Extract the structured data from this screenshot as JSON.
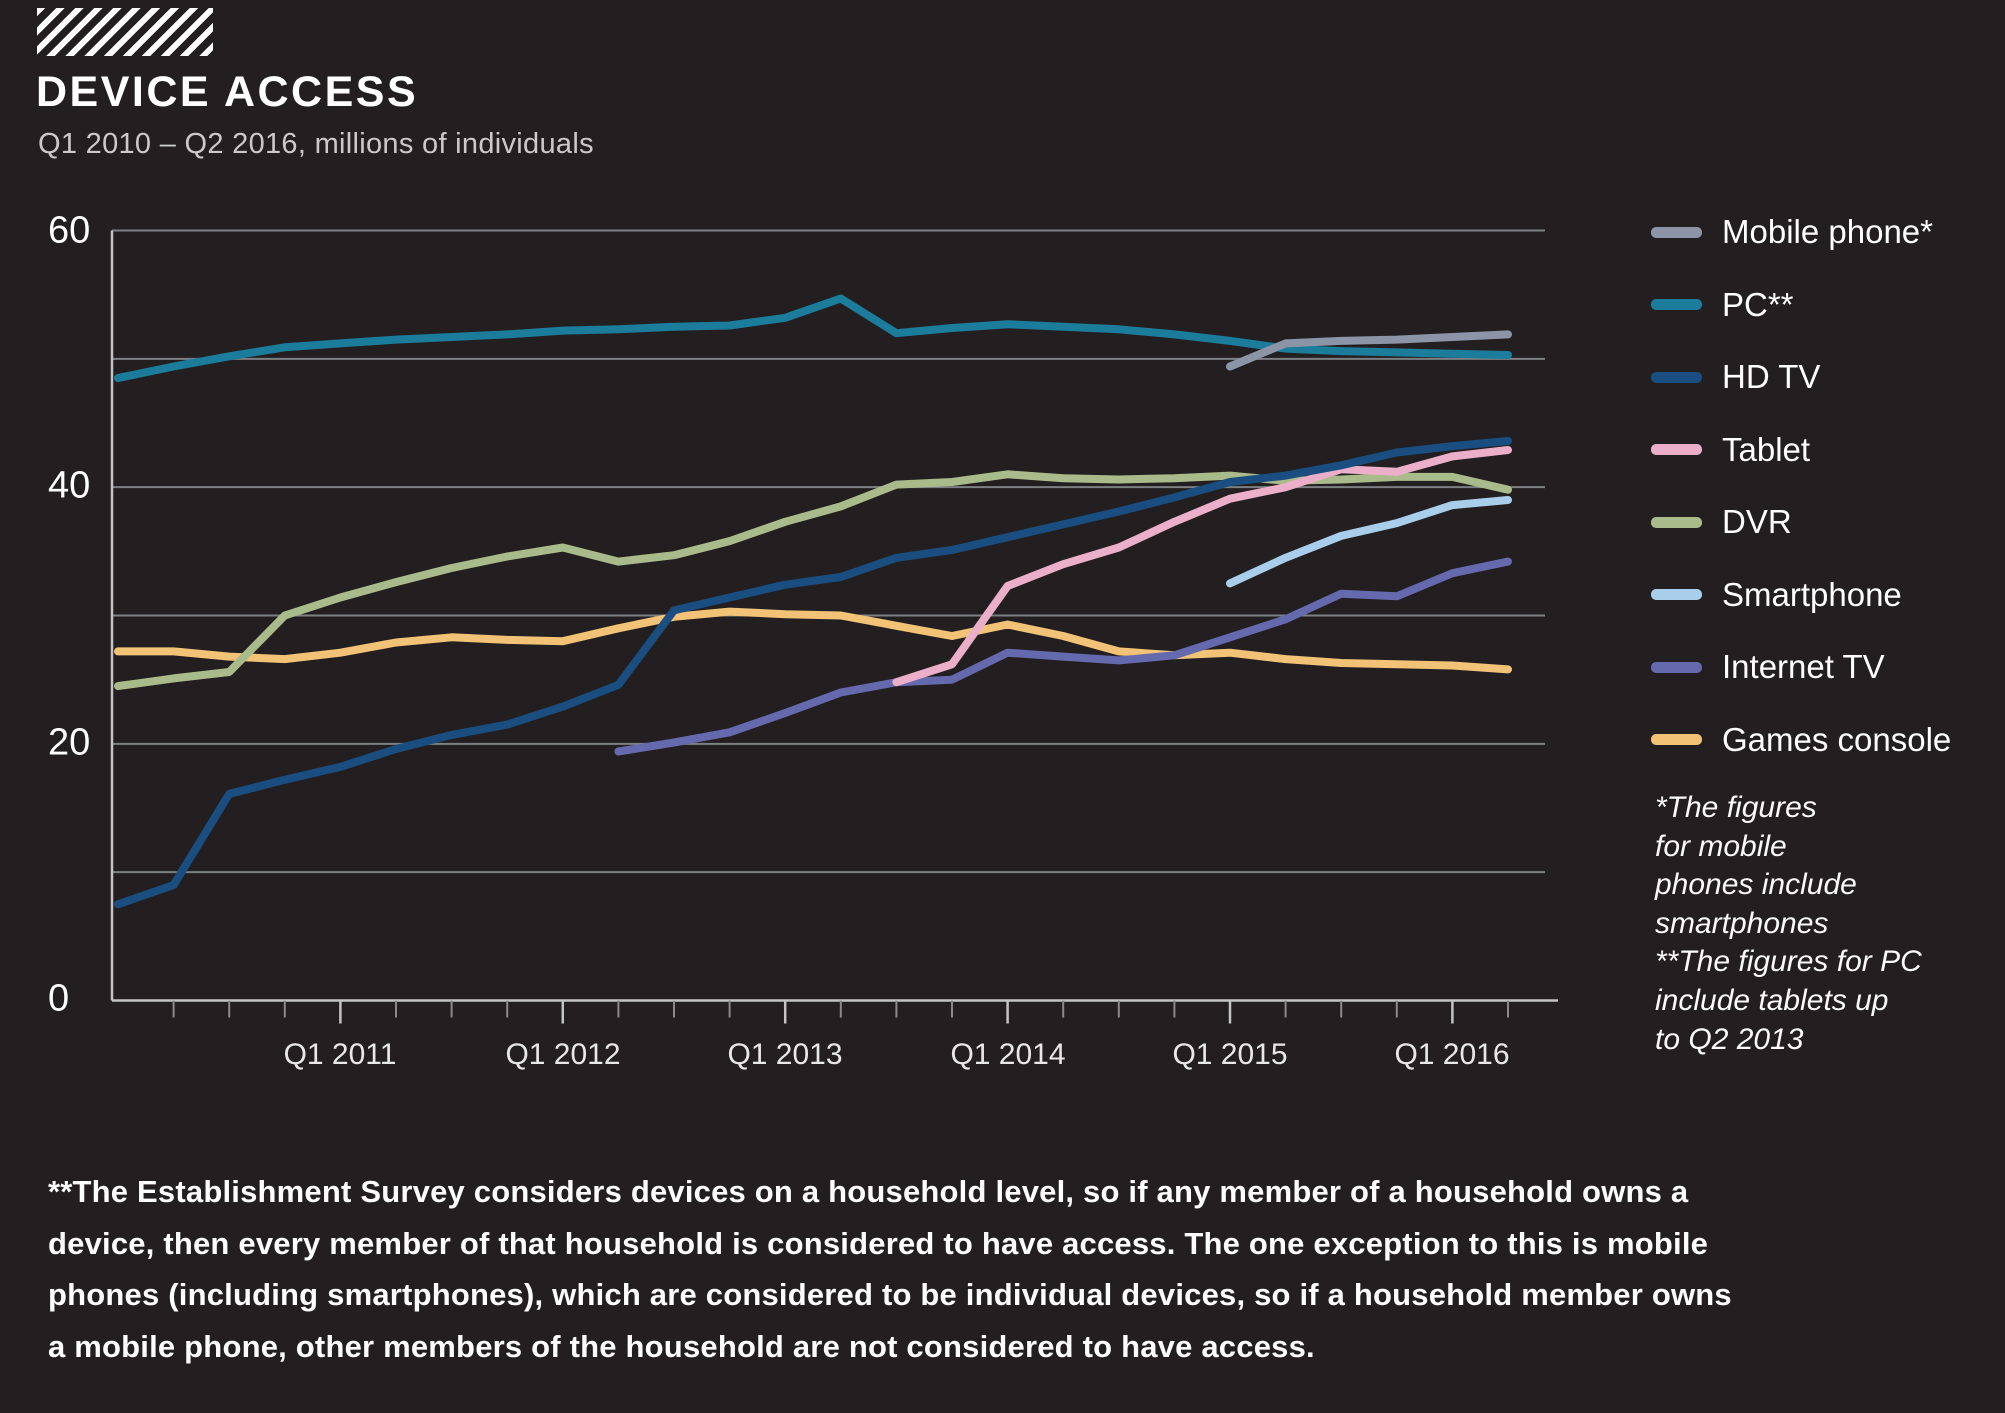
{
  "header": {
    "title": "DEVICE ACCESS",
    "subtitle": "Q1 2010 – Q2 2016, millions of individuals"
  },
  "colors": {
    "background": "#231F20",
    "grid": "#7D8083",
    "axis": "#C4C4C4",
    "tick_minor": "#8A8A8A",
    "tick_major": "#C4C4C4"
  },
  "footnote_lines": [
    "*The figures",
    "for mobile",
    "phones include",
    "smartphones",
    "**The figures for PC",
    "include tablets up",
    "to Q2 2013"
  ],
  "bottom_note_lines": [
    "**The Establishment Survey considers devices on a household level, so if any member of a household owns a",
    "device, then every member of that household is considered to have access. The one exception to this is mobile",
    "phones (including smartphones), which are considered to be individual devices, so if a household member owns",
    "a mobile phone, other members of the household are not considered to have access."
  ],
  "chart_data": {
    "type": "line",
    "title": "DEVICE ACCESS",
    "subtitle": "Q1 2010 – Q2 2016, millions of individuals",
    "ylabel": "millions of individuals",
    "ylim": [
      0,
      60
    ],
    "grid_interval": 10,
    "legend_position": "right",
    "y_tick_labels": [
      "60",
      "40",
      "20",
      "0"
    ],
    "x_axis_tick_labels": [
      "Q1 2011",
      "Q1 2012",
      "Q1 2013",
      "Q1 2014",
      "Q1 2015",
      "Q1 2016"
    ],
    "x": [
      "Q1 2010",
      "Q2 2010",
      "Q3 2010",
      "Q4 2010",
      "Q1 2011",
      "Q2 2011",
      "Q3 2011",
      "Q4 2011",
      "Q1 2012",
      "Q2 2012",
      "Q3 2012",
      "Q4 2012",
      "Q1 2013",
      "Q2 2013",
      "Q3 2013",
      "Q4 2013",
      "Q1 2014",
      "Q2 2014",
      "Q3 2014",
      "Q4 2014",
      "Q1 2015",
      "Q2 2015",
      "Q3 2015",
      "Q4 2015",
      "Q1 2016",
      "Q2 2016"
    ],
    "series": [
      {
        "name": "Mobile phone*",
        "color": "#8B95A7",
        "values": [
          null,
          null,
          null,
          null,
          null,
          null,
          null,
          null,
          null,
          null,
          null,
          null,
          null,
          null,
          null,
          null,
          null,
          null,
          null,
          null,
          49.4,
          51.2,
          51.4,
          51.5,
          51.7,
          51.9
        ]
      },
      {
        "name": "PC**",
        "color": "#1B7C9B",
        "values": [
          48.5,
          49.4,
          50.2,
          50.9,
          51.2,
          51.5,
          51.7,
          51.9,
          52.2,
          52.3,
          52.5,
          52.6,
          53.2,
          54.7,
          52.0,
          52.4,
          52.7,
          52.5,
          52.3,
          51.9,
          51.4,
          50.8,
          50.6,
          50.5,
          50.4,
          50.3
        ]
      },
      {
        "name": "HD TV",
        "color": "#1A4E80",
        "values": [
          7.5,
          9.0,
          16.1,
          17.2,
          18.2,
          19.6,
          20.7,
          21.5,
          22.9,
          24.6,
          30.4,
          31.4,
          32.4,
          33.0,
          34.5,
          35.1,
          36.1,
          37.1,
          38.1,
          39.2,
          40.4,
          40.9,
          41.7,
          42.7,
          43.2,
          43.6
        ]
      },
      {
        "name": "Tablet",
        "color": "#ECAFC9",
        "values": [
          null,
          null,
          null,
          null,
          null,
          null,
          null,
          null,
          null,
          null,
          null,
          null,
          null,
          null,
          24.8,
          26.2,
          32.3,
          34.0,
          35.3,
          37.3,
          39.1,
          40.0,
          41.4,
          41.2,
          42.4,
          42.9
        ]
      },
      {
        "name": "DVR",
        "color": "#A9BB8A",
        "values": [
          24.5,
          25.1,
          25.6,
          30.0,
          31.4,
          32.6,
          33.7,
          34.6,
          35.3,
          34.2,
          34.7,
          35.8,
          37.3,
          38.5,
          40.2,
          40.4,
          41.0,
          40.7,
          40.6,
          40.7,
          40.9,
          40.5,
          40.6,
          40.8,
          40.8,
          39.8
        ]
      },
      {
        "name": "Smartphone",
        "color": "#A8CEEC",
        "values": [
          null,
          null,
          null,
          null,
          null,
          null,
          null,
          null,
          null,
          null,
          null,
          null,
          null,
          null,
          null,
          null,
          null,
          null,
          null,
          null,
          32.5,
          34.5,
          36.2,
          37.2,
          38.6,
          39.0
        ]
      },
      {
        "name": "Internet TV",
        "color": "#6569AE",
        "values": [
          null,
          null,
          null,
          null,
          null,
          null,
          null,
          null,
          null,
          19.4,
          20.1,
          20.9,
          22.4,
          24.0,
          24.8,
          25.0,
          27.1,
          26.8,
          26.5,
          26.9,
          28.3,
          29.7,
          31.7,
          31.5,
          33.3,
          34.2
        ]
      },
      {
        "name": "Games console",
        "color": "#F2C377",
        "values": [
          27.2,
          27.2,
          26.8,
          26.6,
          27.1,
          27.9,
          28.3,
          28.1,
          28.0,
          29.0,
          29.9,
          30.3,
          30.1,
          30.0,
          29.2,
          28.4,
          29.3,
          28.4,
          27.2,
          26.9,
          27.1,
          26.6,
          26.3,
          26.2,
          26.1,
          25.8
        ]
      }
    ]
  }
}
